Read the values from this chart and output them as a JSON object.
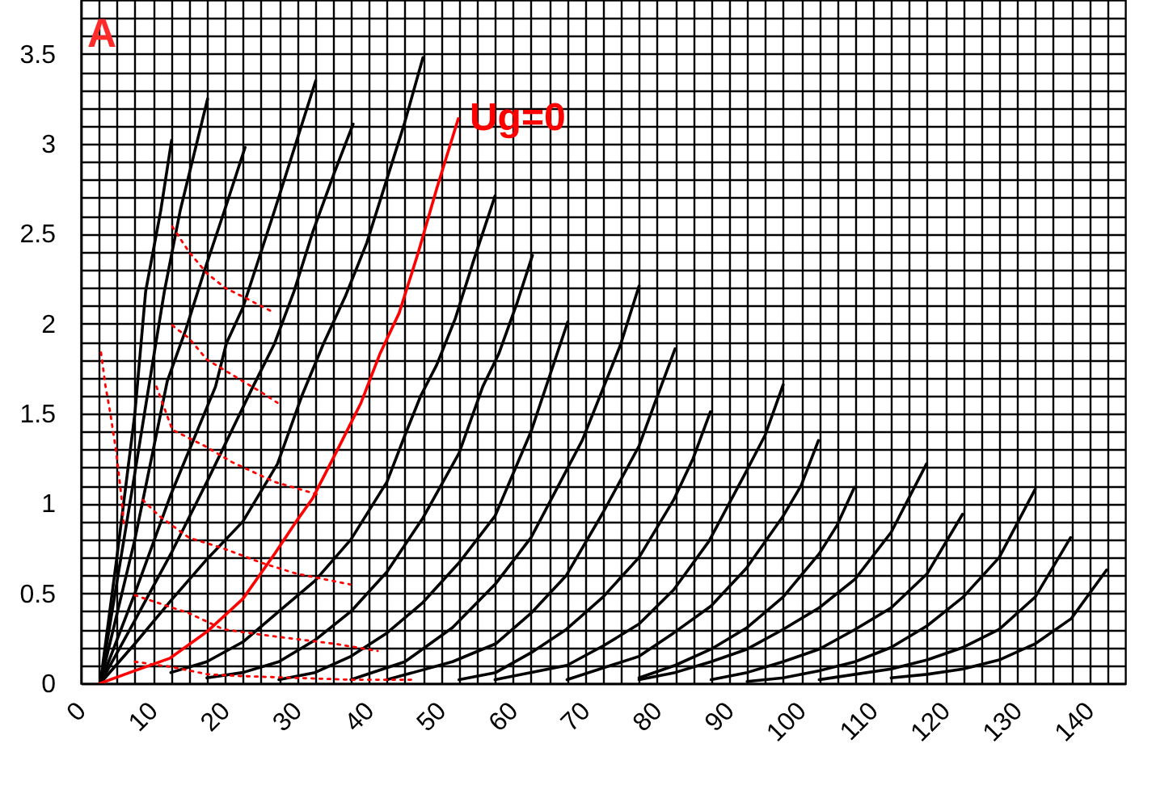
{
  "chart_data": {
    "type": "line",
    "annotations": [
      "A"
    ],
    "xlim": [
      0,
      145
    ],
    "ylim": [
      0,
      3.8
    ],
    "grid": true,
    "xticks": [
      0,
      {
        "value": 2.5,
        "label": null
      },
      {
        "value": 5,
        "label": null
      },
      {
        "value": 7.5,
        "label": null
      },
      10,
      {
        "value": 12.5,
        "label": null
      },
      {
        "value": 15,
        "label": null
      },
      {
        "value": 17.5,
        "label": null
      },
      20,
      {
        "value": 22.5,
        "label": null
      },
      {
        "value": 25,
        "label": null
      },
      {
        "value": 27.5,
        "label": null
      },
      30,
      {
        "value": 32.5,
        "label": null
      },
      {
        "value": 35,
        "label": null
      },
      {
        "value": 37.5,
        "label": null
      },
      40,
      {
        "value": 42.5,
        "label": null
      },
      {
        "value": 45,
        "label": null
      },
      {
        "value": 47.5,
        "label": null
      },
      50,
      {
        "value": 52.5,
        "label": null
      },
      {
        "value": 55,
        "label": null
      },
      {
        "value": 57.5,
        "label": null
      },
      60,
      {
        "value": 62.5,
        "label": null
      },
      {
        "value": 65,
        "label": null
      },
      {
        "value": 67.5,
        "label": null
      },
      70,
      {
        "value": 72.5,
        "label": null
      },
      {
        "value": 75,
        "label": null
      },
      {
        "value": 77.5,
        "label": null
      },
      80,
      {
        "value": 82.5,
        "label": null
      },
      {
        "value": 85,
        "label": null
      },
      {
        "value": 87.5,
        "label": null
      },
      90,
      {
        "value": 92.5,
        "label": null
      },
      {
        "value": 95,
        "label": null
      },
      {
        "value": 97.5,
        "label": null
      },
      100,
      {
        "value": 102.5,
        "label": null
      },
      {
        "value": 105,
        "label": null
      },
      {
        "value": 107.5,
        "label": null
      },
      110,
      {
        "value": 112.5,
        "label": null
      },
      {
        "value": 115,
        "label": null
      },
      {
        "value": 117.5,
        "label": null
      },
      120,
      {
        "value": 122.5,
        "label": null
      },
      {
        "value": 125,
        "label": null
      },
      {
        "value": 127.5,
        "label": null
      },
      130,
      {
        "value": 132.5,
        "label": null
      },
      {
        "value": 135,
        "label": null
      },
      {
        "value": 137.5,
        "label": null
      },
      140,
      {
        "value": 142.5,
        "label": null
      }
    ],
    "yticks": [
      0,
      {
        "value": 0.1,
        "label": null
      },
      {
        "value": 0.2,
        "label": null
      },
      {
        "value": 0.3,
        "label": null
      },
      {
        "value": 0.4,
        "label": null
      },
      0.5,
      {
        "value": 0.6,
        "label": null
      },
      {
        "value": 0.7,
        "label": null
      },
      {
        "value": 0.8,
        "label": null
      },
      {
        "value": 0.9,
        "label": null
      },
      1,
      {
        "value": 1.1,
        "label": null
      },
      {
        "value": 1.2,
        "label": null
      },
      {
        "value": 1.3,
        "label": null
      },
      {
        "value": 1.4,
        "label": null
      },
      1.5,
      {
        "value": 1.6,
        "label": null
      },
      {
        "value": 1.7,
        "label": null
      },
      {
        "value": 1.8,
        "label": null
      },
      {
        "value": 1.9,
        "label": null
      },
      2,
      {
        "value": 2.1,
        "label": null
      },
      {
        "value": 2.2,
        "label": null
      },
      {
        "value": 2.3,
        "label": null
      },
      {
        "value": 2.4,
        "label": null
      },
      2.5,
      {
        "value": 2.6,
        "label": null
      },
      {
        "value": 2.7,
        "label": null
      },
      {
        "value": 2.8,
        "label": null
      },
      {
        "value": 2.9,
        "label": null
      },
      3,
      {
        "value": 3.1,
        "label": null
      },
      {
        "value": 3.2,
        "label": null
      },
      {
        "value": 3.3,
        "label": null
      },
      {
        "value": 3.4,
        "label": null
      },
      3.5,
      {
        "value": 3.6,
        "label": null
      },
      {
        "value": 3.7,
        "label": null
      }
    ],
    "series": [
      {
        "color": "#000000",
        "x": [
          2.7,
          5,
          7.5,
          9,
          11.1,
          12.6
        ],
        "values": [
          0,
          0.7,
          1.5,
          2.18,
          2.63,
          3.02
        ]
      },
      {
        "color": "#000000",
        "x": [
          2.7,
          5,
          7.5,
          10,
          11.6,
          13.8,
          17.6
        ],
        "values": [
          0,
          0.56,
          1.17,
          1.79,
          2.18,
          2.63,
          3.25
        ]
      },
      {
        "color": "#000000",
        "x": [
          2.7,
          7.5,
          12,
          14.6,
          17.2,
          20.2,
          22.8
        ],
        "values": [
          0,
          0.8,
          1.68,
          1.97,
          2.3,
          2.66,
          2.98
        ]
      },
      {
        "color": "#000000",
        "x": [
          2.7,
          7.5,
          12.5,
          18.7,
          20.2,
          22.5,
          26.9,
          32.6
        ],
        "values": [
          0,
          0.5,
          1.05,
          1.65,
          1.89,
          2.09,
          2.63,
          3.35
        ]
      },
      {
        "color": "#000000",
        "x": [
          2.7,
          7.5,
          12.5,
          17.5,
          23.9,
          26.9,
          29.6,
          32.2,
          35.2,
          37.8
        ],
        "values": [
          0,
          0.35,
          0.72,
          1.12,
          1.65,
          1.89,
          2.18,
          2.51,
          2.84,
          3.11
        ]
      },
      {
        "color": "#000000",
        "x": [
          2.7,
          7.5,
          12.5,
          17.5,
          22.5,
          27.3,
          30.7,
          33.7,
          36.7,
          39.7,
          42.3,
          44.9,
          47.5
        ],
        "values": [
          0,
          0.22,
          0.46,
          0.69,
          0.9,
          1.22,
          1.6,
          1.89,
          2.15,
          2.45,
          2.78,
          3.11,
          3.48
        ]
      },
      {
        "color": "#000000",
        "x": [
          12.5,
          17.5,
          22.5,
          27.5,
          32.5,
          37.5,
          42.5,
          45,
          47.2,
          49.4,
          52,
          54.6,
          57.5
        ],
        "values": [
          0.06,
          0.12,
          0.23,
          0.4,
          0.57,
          0.8,
          1.12,
          1.38,
          1.6,
          1.77,
          2.03,
          2.36,
          2.71
        ]
      },
      {
        "color": "#000000",
        "x": [
          17.5,
          22.5,
          27.5,
          32.5,
          37.5,
          42.5,
          47.5,
          52.5,
          55.8,
          58,
          60.6,
          62.7
        ],
        "values": [
          0.03,
          0.06,
          0.12,
          0.24,
          0.4,
          0.62,
          0.92,
          1.28,
          1.65,
          1.83,
          2.12,
          2.38
        ]
      },
      {
        "color": "#000000",
        "x": [
          27.5,
          32.5,
          37.5,
          42.5,
          47.5,
          52.5,
          57.5,
          62.5,
          67.6
        ],
        "values": [
          0.02,
          0.06,
          0.15,
          0.28,
          0.45,
          0.67,
          0.93,
          1.4,
          2.01
        ]
      },
      {
        "color": "#000000",
        "x": [
          37.5,
          45,
          51.6,
          57.5,
          62.5,
          69.6,
          74.9,
          77.5
        ],
        "values": [
          0.02,
          0.12,
          0.31,
          0.55,
          0.81,
          1.35,
          1.88,
          2.21
        ]
      },
      {
        "color": "#000000",
        "x": [
          42.5,
          51.6,
          57.6,
          62.5,
          67.4,
          72.5,
          77.5,
          79.7,
          82.5
        ],
        "values": [
          0.02,
          0.12,
          0.22,
          0.39,
          0.6,
          0.95,
          1.32,
          1.56,
          1.86
        ]
      },
      {
        "color": "#000000",
        "x": [
          52.5,
          57.6,
          62.5,
          67.4,
          72.5,
          77.5,
          82.3,
          85,
          87.4
        ],
        "values": [
          0.02,
          0.06,
          0.17,
          0.3,
          0.48,
          0.7,
          1.02,
          1.25,
          1.51
        ]
      },
      {
        "color": "#000000",
        "x": [
          57.5,
          67.5,
          72.6,
          77.5,
          82.3,
          87.2,
          92.4,
          95,
          97.5
        ],
        "values": [
          0.02,
          0.1,
          0.21,
          0.33,
          0.52,
          0.79,
          1.18,
          1.38,
          1.66
        ]
      },
      {
        "color": "#000000",
        "x": [
          67.5,
          77.5,
          82.3,
          87.5,
          92.4,
          97.5,
          100,
          102.4
        ],
        "values": [
          0.02,
          0.15,
          0.28,
          0.43,
          0.64,
          0.93,
          1.1,
          1.35
        ]
      },
      {
        "color": "#000000",
        "x": [
          77.5,
          82.5,
          87.5,
          92.5,
          97.5,
          102.5,
          105,
          107.4
        ],
        "values": [
          0.03,
          0.1,
          0.19,
          0.31,
          0.48,
          0.72,
          0.88,
          1.09
        ]
      },
      {
        "color": "#000000",
        "x": [
          77.5,
          82.5,
          87.5,
          92.5,
          97.5,
          102.5,
          107.5,
          112.5,
          117.4
        ],
        "values": [
          0.02,
          0.06,
          0.12,
          0.19,
          0.3,
          0.42,
          0.58,
          0.84,
          1.22
        ]
      },
      {
        "color": "#000000",
        "x": [
          87.5,
          92.5,
          97.5,
          102.5,
          107.5,
          112.5,
          117.5,
          122.4
        ],
        "values": [
          0.02,
          0.06,
          0.12,
          0.19,
          0.3,
          0.42,
          0.61,
          0.94
        ]
      },
      {
        "color": "#000000",
        "x": [
          92.5,
          97.5,
          102.5,
          107.5,
          112.5,
          117.5,
          122.5,
          127.5,
          132.5
        ],
        "values": [
          0.01,
          0.03,
          0.07,
          0.12,
          0.2,
          0.32,
          0.48,
          0.7,
          1.08
        ]
      },
      {
        "color": "#000000",
        "x": [
          102.5,
          107.5,
          112.5,
          117.5,
          122.5,
          127.5,
          132.5,
          137.4
        ],
        "values": [
          0.02,
          0.05,
          0.08,
          0.13,
          0.2,
          0.3,
          0.48,
          0.81
        ]
      },
      {
        "color": "#000000",
        "x": [
          112.5,
          117.5,
          122.5,
          127.5,
          132.5,
          137.5,
          142.4
        ],
        "values": [
          0.03,
          0.05,
          0.08,
          0.13,
          0.22,
          0.36,
          0.63
        ]
      },
      {
        "color": "#ff0000",
        "line_style": "dotted",
        "x": [
          2.8,
          3.4,
          4.1,
          4.9,
          5.6,
          6.0
        ],
        "values": [
          1.84,
          1.66,
          1.5,
          1.29,
          1.05,
          0.87
        ]
      },
      {
        "color": "#ff0000",
        "line_style": "dotted",
        "x": [
          12.7,
          15,
          17.5,
          20,
          22.5,
          26.9
        ],
        "values": [
          2.54,
          2.4,
          2.28,
          2.2,
          2.15,
          2.06
        ]
      },
      {
        "color": "#ff0000",
        "line_style": "dotted",
        "x": [
          12.7,
          15,
          17.5,
          20,
          22.5,
          25,
          27.3
        ],
        "values": [
          1.99,
          1.92,
          1.8,
          1.74,
          1.68,
          1.62,
          1.56
        ]
      },
      {
        "color": "#ff0000",
        "line_style": "dotted",
        "x": [
          10.5,
          12.7,
          17.2,
          21,
          26.9,
          32.9
        ],
        "values": [
          1.65,
          1.41,
          1.32,
          1.23,
          1.12,
          1.05
        ]
      },
      {
        "color": "#ff0000",
        "line_style": "dotted",
        "x": [
          8.6,
          10.9,
          15,
          19.8,
          25.1,
          29.9,
          37.4
        ],
        "values": [
          1.02,
          0.93,
          0.81,
          0.75,
          0.67,
          0.61,
          0.55
        ]
      },
      {
        "color": "#ff0000",
        "line_style": "dotted",
        "x": [
          7.5,
          15,
          19.8,
          25.1,
          35.2,
          41.2
        ],
        "values": [
          0.49,
          0.39,
          0.3,
          0.27,
          0.22,
          0.18
        ]
      },
      {
        "color": "#ff0000",
        "line_style": "dotted",
        "x": [
          7.5,
          12.7,
          17.6,
          22.5,
          29.9,
          37.4,
          46.4
        ],
        "values": [
          0.12,
          0.09,
          0.05,
          0.04,
          0.03,
          0.02,
          0.02
        ]
      },
      {
        "name": "Ug=0",
        "color": "#ff0000",
        "x": [
          2.7,
          7.5,
          12.4,
          17.6,
          22.5,
          26.9,
          29.9,
          32.2,
          35.9,
          38.9,
          41.5,
          44.2,
          46.8,
          49.4,
          52.4
        ],
        "values": [
          0,
          0.07,
          0.14,
          0.29,
          0.47,
          0.72,
          0.9,
          1.03,
          1.32,
          1.56,
          1.83,
          2.06,
          2.39,
          2.75,
          3.14
        ]
      }
    ]
  }
}
